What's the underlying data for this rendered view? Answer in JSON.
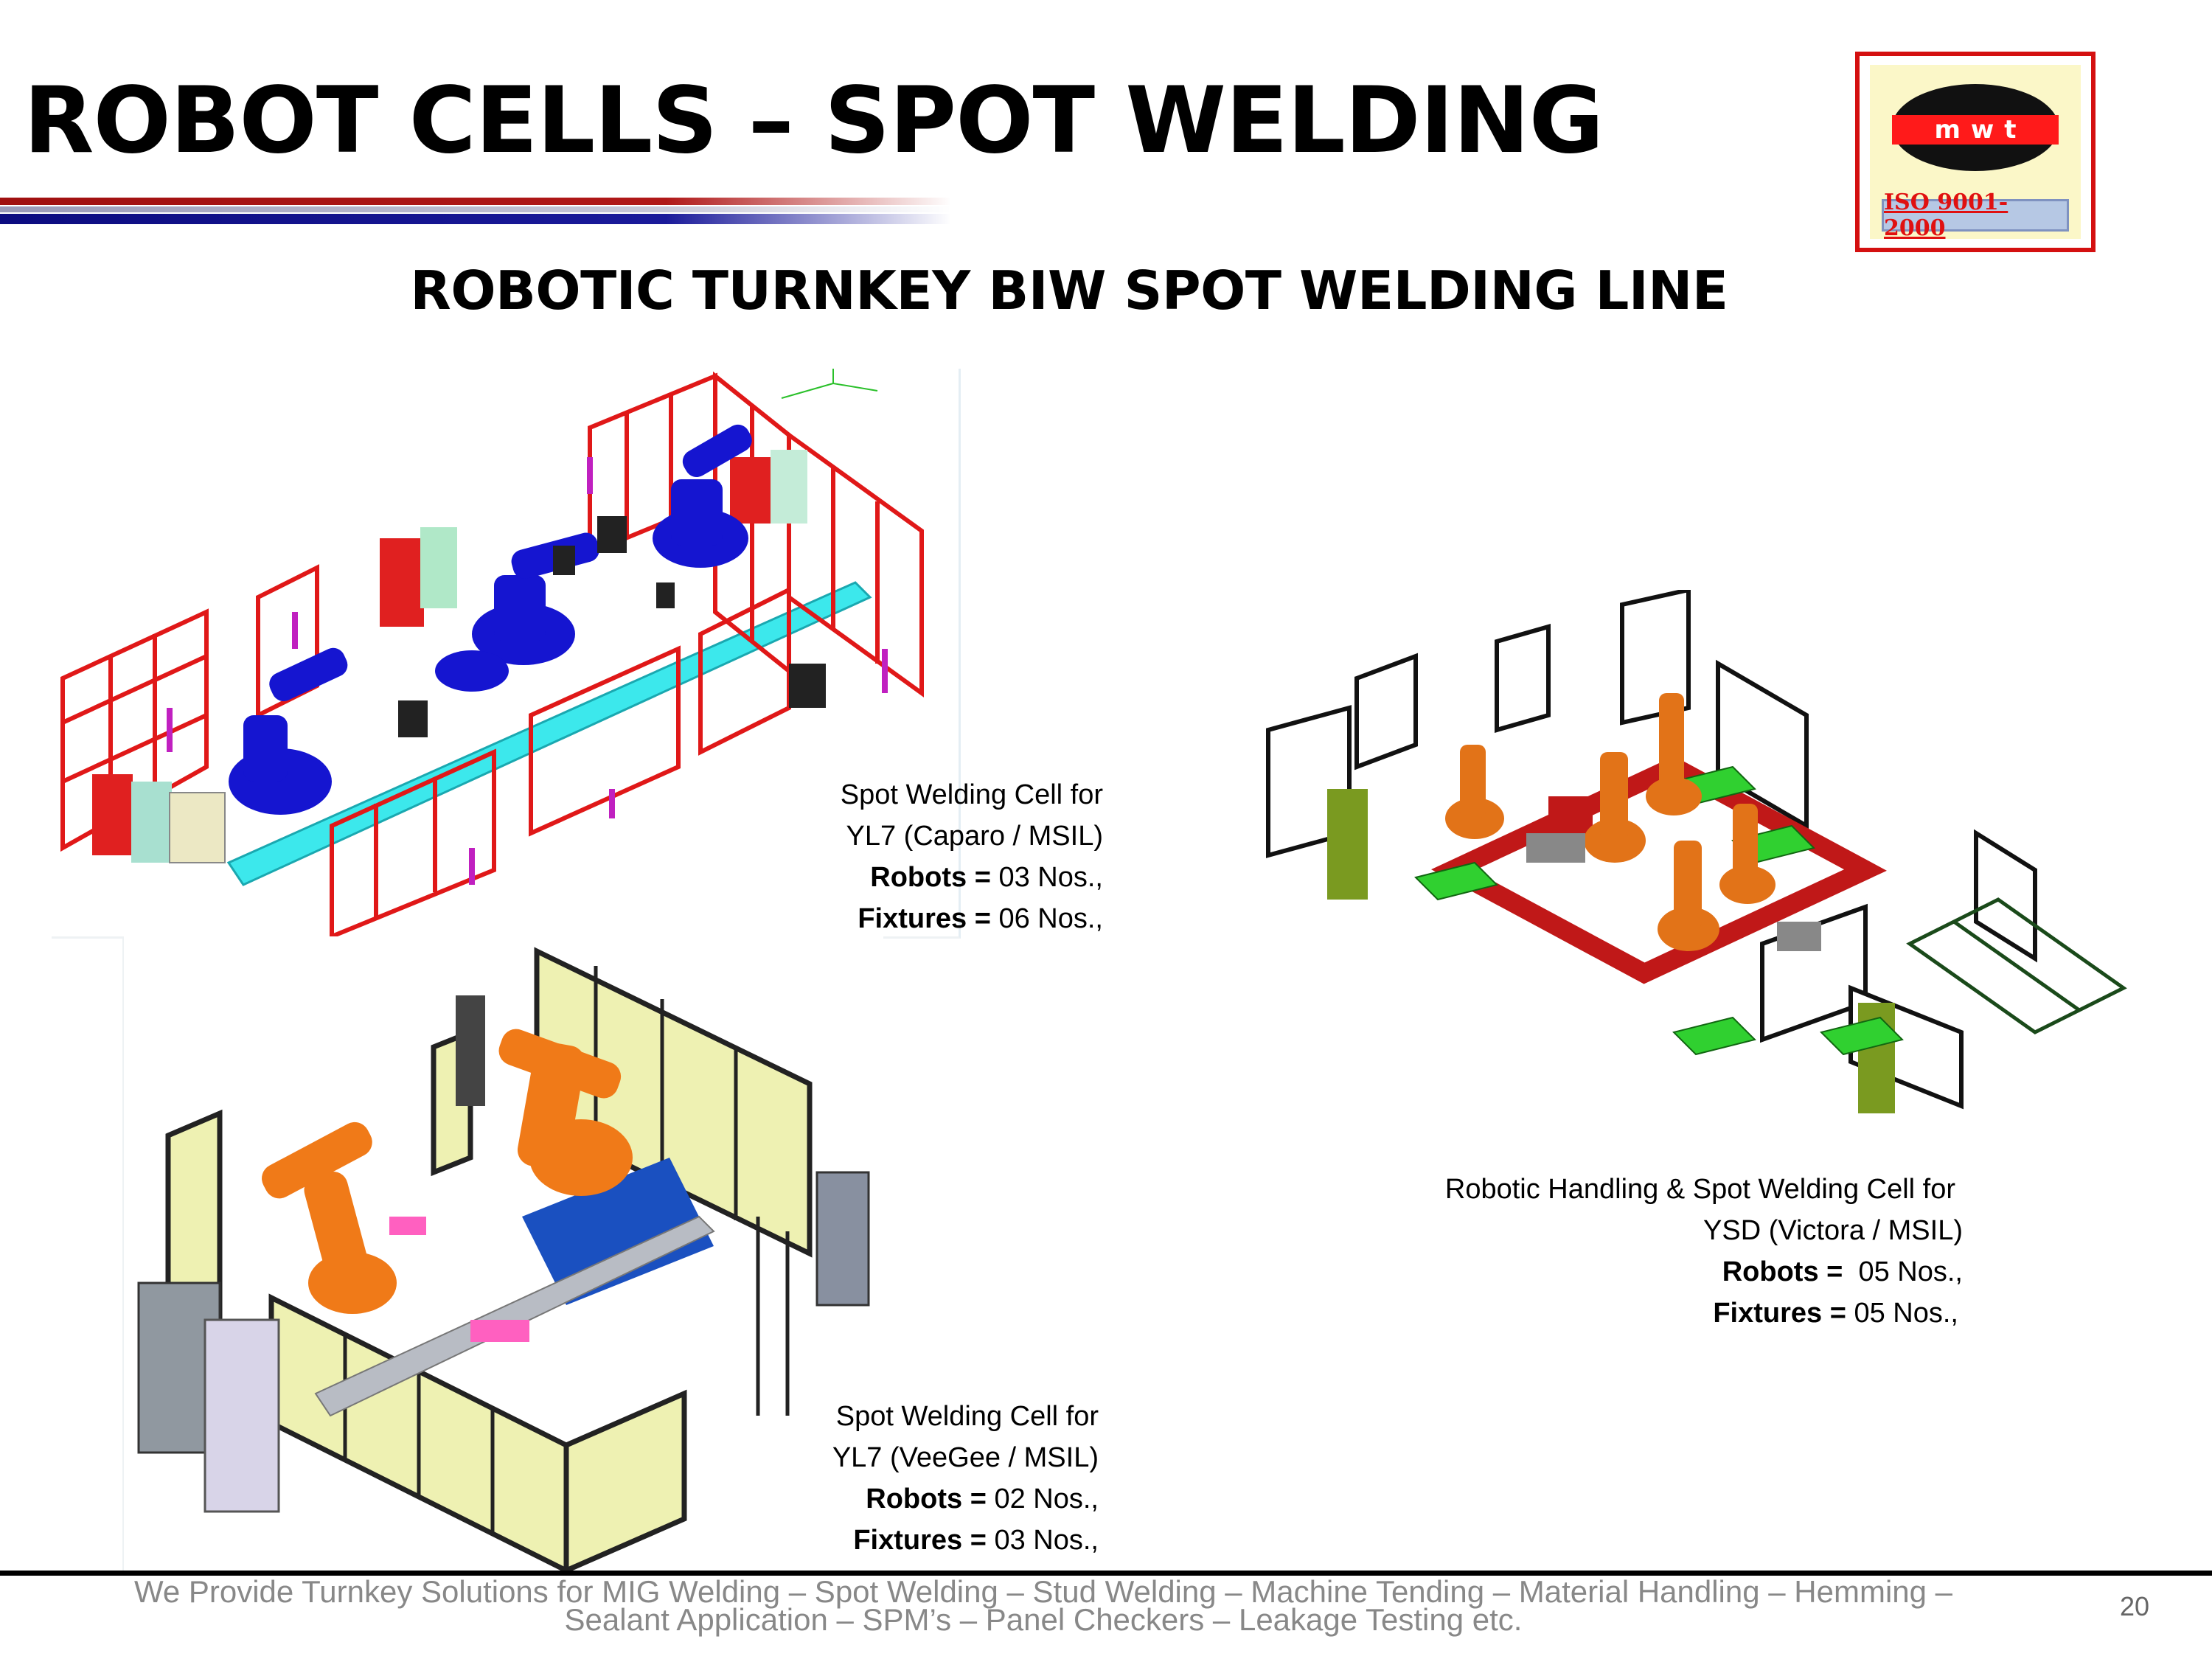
{
  "header": {
    "title": "ROBOT CELLS – SPOT WELDING",
    "subtitle": "ROBOTIC TURNKEY BIW SPOT WELDING LINE"
  },
  "logo": {
    "letters": "mwt",
    "certification": "ISO 9001-2000",
    "colors": {
      "frame": "#d41010",
      "oval": "#111111",
      "band": "#ff1a1a",
      "badge": "#b6c8e4"
    }
  },
  "cells": [
    {
      "caption_line1": "Spot Welding Cell for",
      "caption_line2": "YL7 (Caparo / MSIL)",
      "robots_label": "Robots =",
      "robots_value": "03 Nos.,",
      "fixtures_label": "Fixtures =",
      "fixtures_value": "06 Nos.,"
    },
    {
      "caption_line1": "Spot Welding Cell for",
      "caption_line2": "YL7 (VeeGee / MSIL)",
      "robots_label": "Robots =",
      "robots_value": "02 Nos.,",
      "fixtures_label": "Fixtures =",
      "fixtures_value": "03 Nos.,"
    },
    {
      "caption_line1": "Robotic Handling & Spot Welding Cell for",
      "caption_line2": "YSD (Victora / MSIL)",
      "robots_label": "Robots =",
      "robots_value": "05 Nos.,",
      "fixtures_label": "Fixtures =",
      "fixtures_value": "05 Nos.,"
    }
  ],
  "footer": {
    "line1": "We Provide Turnkey Solutions for MIG Welding – Spot Welding – Stud Welding – Machine Tending – Material Handling – Hemming –",
    "line2": "Sealant Application – SPM’s – Panel Checkers – Leakage Testing etc.",
    "page_number": "20"
  },
  "accent_colors": {
    "red": "#a01010",
    "blue": "#0c0c80",
    "fence_red": "#e01818",
    "robot_blue": "#1515d0",
    "robot_orange": "#f07a18",
    "panel_yellow": "#e8ec98"
  }
}
